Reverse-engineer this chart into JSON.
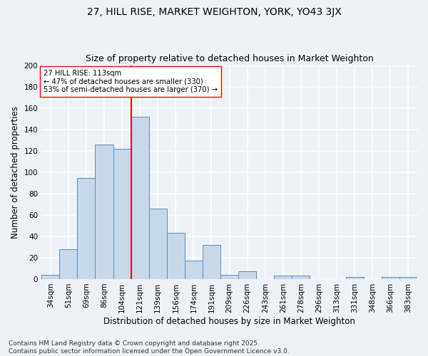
{
  "title": "27, HILL RISE, MARKET WEIGHTON, YORK, YO43 3JX",
  "subtitle": "Size of property relative to detached houses in Market Weighton",
  "xlabel": "Distribution of detached houses by size in Market Weighton",
  "ylabel": "Number of detached properties",
  "categories": [
    "34sqm",
    "51sqm",
    "69sqm",
    "86sqm",
    "104sqm",
    "121sqm",
    "139sqm",
    "156sqm",
    "174sqm",
    "191sqm",
    "209sqm",
    "226sqm",
    "243sqm",
    "261sqm",
    "278sqm",
    "296sqm",
    "313sqm",
    "331sqm",
    "348sqm",
    "366sqm",
    "383sqm"
  ],
  "values": [
    4,
    28,
    95,
    126,
    122,
    152,
    66,
    43,
    17,
    32,
    4,
    7,
    0,
    3,
    3,
    0,
    0,
    2,
    0,
    2,
    2
  ],
  "bar_color": "#c8d8e8",
  "bar_edge_color": "#5b8db8",
  "vline_x": 4.5,
  "annotation_line1": "27 HILL RISE: 113sqm",
  "annotation_line2": "← 47% of detached houses are smaller (330)",
  "annotation_line3": "53% of semi-detached houses are larger (370) →",
  "ylim": [
    0,
    200
  ],
  "yticks": [
    0,
    20,
    40,
    60,
    80,
    100,
    120,
    140,
    160,
    180,
    200
  ],
  "background_color": "#eef2f7",
  "grid_color": "#ffffff",
  "footer": "Contains HM Land Registry data © Crown copyright and database right 2025.\nContains public sector information licensed under the Open Government Licence v3.0.",
  "title_fontsize": 10,
  "subtitle_fontsize": 9,
  "axis_label_fontsize": 8.5,
  "tick_fontsize": 7.5,
  "footer_fontsize": 6.5
}
